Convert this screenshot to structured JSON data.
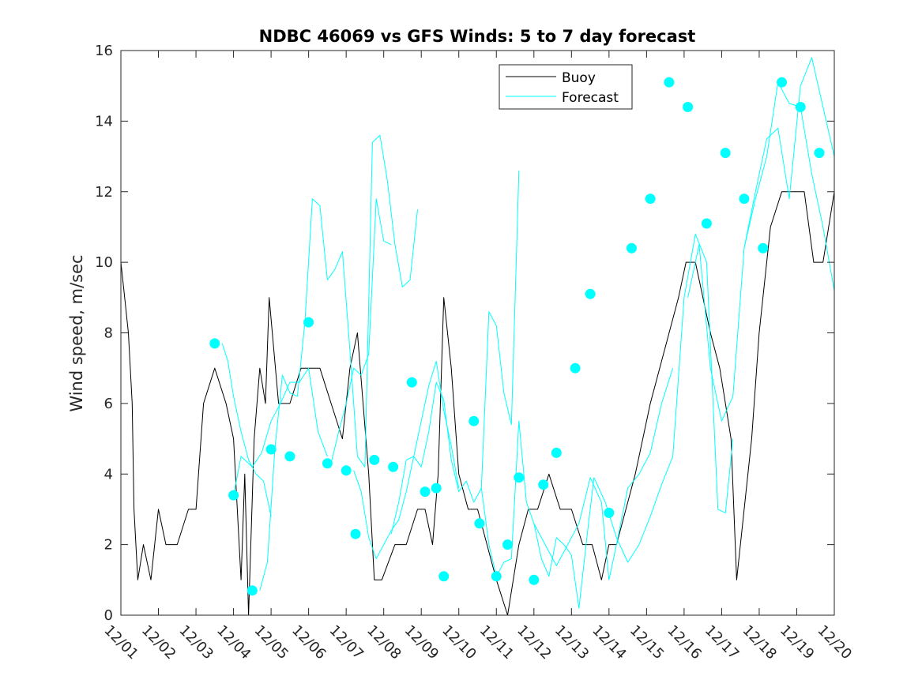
{
  "chart_data": {
    "type": "line",
    "title": "NDBC 46069 vs GFS Winds: 5 to 7 day forecast",
    "xlabel": "",
    "ylabel": "Wind speed, m/sec",
    "xlim": [
      0,
      19
    ],
    "ylim": [
      0,
      16
    ],
    "yticks": [
      0,
      2,
      4,
      6,
      8,
      10,
      12,
      14,
      16
    ],
    "xticks": [
      "12/01",
      "12/02",
      "12/03",
      "12/04",
      "12/05",
      "12/06",
      "12/07",
      "12/08",
      "12/09",
      "12/10",
      "12/11",
      "12/12",
      "12/13",
      "12/14",
      "12/15",
      "12/16",
      "12/17",
      "12/18",
      "12/19",
      "12/20"
    ],
    "legend": {
      "position": "top-right",
      "entries": [
        {
          "name": "Buoy",
          "color": "#000000"
        },
        {
          "name": "Forecast",
          "color": "#00ffff"
        }
      ]
    },
    "series": [
      {
        "name": "Buoy",
        "color": "#000000",
        "style": "line",
        "x": [
          0.0,
          0.1,
          0.2,
          0.3,
          0.35,
          0.45,
          0.6,
          0.8,
          1.0,
          1.2,
          1.5,
          1.8,
          2.0,
          2.2,
          2.5,
          2.8,
          3.0,
          3.2,
          3.3,
          3.4,
          3.55,
          3.7,
          3.85,
          3.95,
          4.2,
          4.5,
          4.8,
          5.0,
          5.3,
          5.6,
          5.9,
          6.1,
          6.3,
          6.6,
          6.75,
          6.95,
          7.3,
          7.6,
          7.9,
          8.1,
          8.3,
          8.45,
          8.6,
          8.8,
          9.0,
          9.25,
          9.5,
          9.75,
          10.0,
          10.3,
          10.6,
          10.85,
          11.1,
          11.4,
          11.7,
          12.0,
          12.3,
          12.55,
          12.8,
          13.0,
          13.2,
          13.45,
          13.7,
          13.9,
          14.1,
          14.35,
          14.6,
          14.85,
          15.05,
          15.3,
          15.5,
          15.7,
          15.95,
          16.1,
          16.25,
          16.4,
          16.6,
          16.8,
          17.0,
          17.3,
          17.6,
          17.9,
          18.2,
          18.45,
          18.7,
          19.0
        ],
        "y": [
          10,
          9,
          8,
          6,
          3,
          1,
          2,
          1,
          3,
          2,
          2,
          3,
          3,
          6,
          7,
          6,
          5,
          1,
          4,
          0,
          5,
          7,
          6,
          9,
          6,
          6,
          7,
          7,
          7,
          6,
          5,
          7,
          8,
          4,
          1,
          1,
          2,
          2,
          3,
          3,
          2,
          4,
          9,
          7,
          4,
          3,
          3,
          2,
          1,
          0,
          2,
          3,
          3,
          4,
          3,
          3,
          2,
          2,
          1,
          2,
          2,
          3,
          4,
          5,
          6,
          7,
          8,
          9,
          10,
          10,
          9,
          8,
          7,
          6,
          5,
          1,
          3,
          5,
          8,
          11,
          12,
          12,
          12,
          10,
          10,
          12
        ]
      },
      {
        "name": "Forecast",
        "color": "#00ffff",
        "style": "line",
        "x": [
          2.7,
          2.85,
          3.0,
          3.2,
          3.4,
          3.6,
          3.8,
          4.0
        ],
        "y": [
          7.7,
          7.2,
          6.2,
          5.2,
          4.4,
          4.0,
          3.8,
          2.8
        ]
      },
      {
        "name": "Forecast",
        "color": "#00ffff",
        "style": "line",
        "x": [
          3.0,
          3.2,
          3.5,
          3.75,
          4.0,
          4.25,
          4.5,
          4.75,
          5.0,
          5.25,
          5.5
        ],
        "y": [
          3.4,
          4.5,
          4.2,
          4.6,
          5.5,
          6.0,
          6.6,
          6.6,
          7.0,
          5.2,
          4.5
        ]
      },
      {
        "name": "Forecast",
        "color": "#00ffff",
        "style": "line",
        "x": [
          3.7,
          3.9,
          4.1,
          4.3,
          4.5,
          4.7,
          4.9,
          5.1,
          5.3,
          5.5,
          5.7,
          5.9,
          6.1,
          6.3,
          6.5,
          6.7,
          6.9,
          7.1,
          7.3,
          7.5,
          7.7,
          7.9
        ],
        "y": [
          0.7,
          1.5,
          4.7,
          6.8,
          6.3,
          6.2,
          8.3,
          11.8,
          11.6,
          9.5,
          9.8,
          10.3,
          7.5,
          4.5,
          4.2,
          13.4,
          13.6,
          12.3,
          10.5,
          9.3,
          9.5,
          11.5
        ]
      },
      {
        "name": "Forecast",
        "color": "#00ffff",
        "style": "line",
        "x": [
          5.6,
          5.8,
          6.0,
          6.2,
          6.4,
          6.6,
          6.8,
          7.0,
          7.2
        ],
        "y": [
          4.3,
          5.2,
          6.0,
          7.0,
          6.8,
          7.4,
          11.8,
          10.6,
          10.5
        ]
      },
      {
        "name": "Forecast",
        "color": "#00ffff",
        "style": "line",
        "x": [
          6.2,
          6.4,
          6.6,
          6.8,
          7.0,
          7.2,
          7.4,
          7.6,
          7.8,
          8.0,
          8.2,
          8.4,
          8.6,
          8.8,
          9.0
        ],
        "y": [
          4.1,
          3.5,
          2.2,
          1.6,
          2.0,
          2.4,
          2.7,
          3.5,
          4.5,
          5.5,
          6.5,
          7.2,
          5.8,
          4.8,
          3.6
        ]
      },
      {
        "name": "Forecast",
        "color": "#00ffff",
        "style": "line",
        "x": [
          7.2,
          7.4,
          7.6,
          7.8,
          8.0,
          8.2,
          8.4,
          8.6,
          8.8,
          9.0,
          9.2,
          9.4,
          9.6,
          9.8,
          10.0,
          10.2,
          10.4,
          10.6
        ],
        "y": [
          2.3,
          3.2,
          4.4,
          4.5,
          4.2,
          5.2,
          6.6,
          6.1,
          4.4,
          3.5,
          3.8,
          3.2,
          3.6,
          8.6,
          8.2,
          6.3,
          5.4,
          12.6
        ]
      },
      {
        "name": "Forecast",
        "color": "#00ffff",
        "style": "line",
        "x": [
          9.6,
          9.8,
          10.0,
          10.2,
          10.4,
          10.6,
          10.8,
          11.0,
          11.2,
          11.4,
          11.6,
          11.8,
          12.0,
          12.2,
          12.4,
          12.6
        ],
        "y": [
          3.6,
          2.0,
          1.1,
          1.5,
          1.6,
          5.5,
          3.2,
          2.6,
          1.6,
          1.1,
          2.2,
          2.0,
          1.7,
          0.2,
          2.1,
          3.9
        ]
      },
      {
        "name": "Forecast",
        "color": "#00ffff",
        "style": "line",
        "x": [
          11.0,
          11.3,
          11.6,
          11.9,
          12.2,
          12.5,
          12.8,
          13.0,
          13.2,
          13.5,
          13.8,
          14.1,
          14.4,
          14.7
        ],
        "y": [
          2.6,
          2.0,
          1.4,
          2.0,
          2.6,
          3.9,
          3.2,
          1.0,
          2.0,
          3.6,
          4.0,
          4.6,
          6.0,
          7.0
        ]
      },
      {
        "name": "Forecast",
        "color": "#00ffff",
        "style": "line",
        "x": [
          12.6,
          12.9,
          13.2,
          13.5,
          13.8,
          14.1,
          14.4,
          14.7,
          15.0,
          15.3,
          15.6,
          15.9,
          16.1,
          16.3
        ],
        "y": [
          3.9,
          3.2,
          2.2,
          1.5,
          2.0,
          2.8,
          3.7,
          4.5,
          9.0,
          10.8,
          10.0,
          3.0,
          2.9,
          5.0
        ]
      },
      {
        "name": "Forecast",
        "color": "#00ffff",
        "style": "line",
        "x": [
          15.1,
          15.4,
          15.7,
          16.0,
          16.3,
          16.6,
          16.9,
          17.2,
          17.5,
          17.8,
          18.1,
          18.4,
          18.7,
          19.0
        ],
        "y": [
          9.0,
          10.5,
          7.0,
          5.5,
          6.2,
          10.4,
          12.0,
          13.5,
          13.8,
          11.8,
          15.0,
          15.8,
          14.4,
          13.0
        ]
      },
      {
        "name": "Forecast",
        "color": "#00ffff",
        "style": "line",
        "x": [
          16.6,
          16.9,
          17.2,
          17.5,
          17.8,
          18.1,
          18.4,
          18.7,
          19.0
        ],
        "y": [
          10.4,
          11.8,
          13.0,
          15.1,
          14.5,
          14.4,
          12.5,
          11.0,
          9.2
        ]
      },
      {
        "name": "Forecast markers",
        "color": "#00ffff",
        "style": "markers",
        "x": [
          2.5,
          3.0,
          3.5,
          4.0,
          4.5,
          5.0,
          5.5,
          6.0,
          6.25,
          6.75,
          7.25,
          7.75,
          8.1,
          8.4,
          8.6,
          9.4,
          9.55,
          10.0,
          10.3,
          10.6,
          11.0,
          11.25,
          11.6,
          12.1,
          12.5,
          13.0,
          13.6,
          14.1,
          14.6,
          15.1,
          15.6,
          16.1,
          16.6,
          17.1,
          17.6,
          18.1,
          18.6
        ],
        "y": [
          7.7,
          3.4,
          0.7,
          4.7,
          4.5,
          8.3,
          4.3,
          4.1,
          2.3,
          4.4,
          4.2,
          6.6,
          3.5,
          3.6,
          1.1,
          5.5,
          2.6,
          1.1,
          2.0,
          3.9,
          1.0,
          3.7,
          4.6,
          7.0,
          9.1,
          2.9,
          10.4,
          11.8,
          15.1,
          14.4,
          11.1,
          13.1,
          11.8,
          10.4,
          15.1,
          14.4,
          13.1
        ]
      }
    ]
  }
}
